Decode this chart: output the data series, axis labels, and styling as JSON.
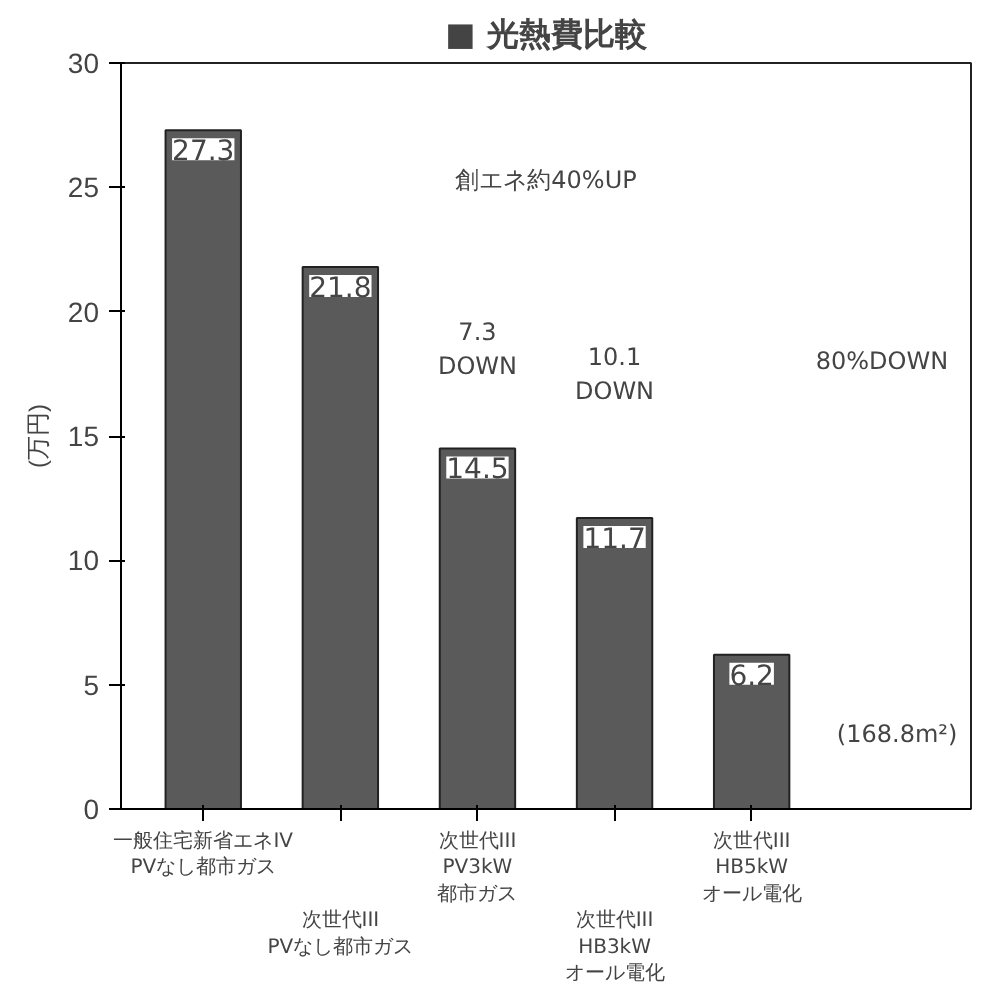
{
  "chart_data": {
    "type": "bar",
    "title": "■ 光熱費比較",
    "ylabel": "(万円)",
    "categories": [
      "一般住宅新省エネIV\nPVなし都市ガス",
      "次世代III\nPVなし都市ガス",
      "次世代III\nPV3kW\n都市ガス",
      "次世代III\nHB3kW\nオール電化",
      "次世代III\nHB5kW\nオール電化"
    ],
    "values": [
      27.3,
      21.8,
      14.5,
      11.7,
      6.2
    ],
    "color": "#5a5a5a",
    "data_labels": true,
    "ylim": [
      0,
      30
    ],
    "yticks": [
      0,
      5,
      10,
      15,
      20,
      25,
      30
    ],
    "grid": false,
    "annotations": [
      {
        "text": "7.3\nDOWN",
        "x": "次世代III\nPV3kW\n都市ガス",
        "y": 18.5
      },
      {
        "text": "10.1\nDOWN",
        "x": "次世代III\nHB3kW\nオール電化",
        "y": 17.5
      },
      "創エネ約40%UP",
      "80%DOWN",
      "(168.8m²)"
    ]
  }
}
